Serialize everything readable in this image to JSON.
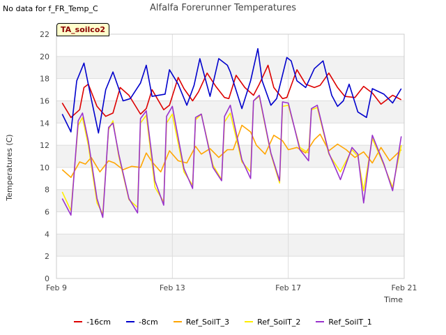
{
  "no_data_note": "No data for f_FR_Temp_C",
  "badge_label": "TA_soilco2",
  "chart_data": {
    "type": "line",
    "title": "Alfalfa Forerunner Temperatures",
    "xlabel": "Time",
    "ylabel": "Temperatures (C)",
    "ylim": [
      0,
      22
    ],
    "yticks": [
      0,
      2,
      4,
      6,
      8,
      10,
      12,
      14,
      16,
      18,
      20,
      22
    ],
    "xlim": [
      0,
      12
    ],
    "xticks": [
      {
        "value": 0,
        "label": "Feb 9"
      },
      {
        "value": 4,
        "label": "Feb 13"
      },
      {
        "value": 8,
        "label": "Feb 17"
      },
      {
        "value": 12,
        "label": "Feb 21"
      }
    ],
    "series": [
      {
        "name": "-16cm",
        "color": "#dd0000",
        "x": [
          0.2,
          0.5,
          0.8,
          0.95,
          1.1,
          1.4,
          1.7,
          1.95,
          2.2,
          2.5,
          2.9,
          3.1,
          3.3,
          3.7,
          3.9,
          4.2,
          4.4,
          4.7,
          4.9,
          5.2,
          5.5,
          5.8,
          5.95,
          6.2,
          6.5,
          6.8,
          7.0,
          7.3,
          7.5,
          7.8,
          7.95,
          8.3,
          8.6,
          8.9,
          9.1,
          9.4,
          9.7,
          9.95,
          10.3,
          10.6,
          10.9,
          11.2,
          11.6,
          11.9
        ],
        "y": [
          15.8,
          14.5,
          15.2,
          17.2,
          17.5,
          15.5,
          14.6,
          14.9,
          17.2,
          16.5,
          14.8,
          15.3,
          17.0,
          15.2,
          15.6,
          18.1,
          17.1,
          16.0,
          16.8,
          18.5,
          17.3,
          16.3,
          16.2,
          18.3,
          17.2,
          16.5,
          17.5,
          19.2,
          17.2,
          16.2,
          16.3,
          18.8,
          17.5,
          17.2,
          17.4,
          18.5,
          17.2,
          16.4,
          16.3,
          17.3,
          16.7,
          15.7,
          16.5,
          16.1
        ]
      },
      {
        "name": "-8cm",
        "color": "#0000cc",
        "x": [
          0.2,
          0.5,
          0.7,
          0.95,
          1.2,
          1.45,
          1.7,
          1.95,
          2.3,
          2.55,
          2.9,
          3.1,
          3.3,
          3.75,
          3.9,
          4.2,
          4.5,
          4.75,
          4.95,
          5.3,
          5.6,
          5.9,
          6.0,
          6.4,
          6.7,
          6.95,
          7.1,
          7.4,
          7.6,
          7.95,
          8.1,
          8.3,
          8.6,
          8.9,
          9.2,
          9.5,
          9.7,
          9.9,
          10.1,
          10.4,
          10.7,
          10.9,
          11.3,
          11.6,
          11.9
        ],
        "y": [
          14.8,
          13.2,
          17.8,
          19.4,
          16.2,
          13.1,
          17.0,
          18.6,
          16.0,
          16.2,
          17.6,
          19.2,
          16.4,
          16.6,
          18.8,
          17.5,
          15.6,
          17.4,
          19.8,
          16.4,
          19.8,
          19.2,
          18.6,
          15.3,
          17.8,
          20.7,
          17.8,
          15.6,
          16.2,
          19.9,
          19.6,
          17.8,
          17.2,
          18.9,
          19.6,
          16.5,
          15.5,
          16.0,
          17.5,
          15.0,
          14.5,
          17.1,
          16.6,
          15.8,
          17.1
        ]
      },
      {
        "name": "Ref_SoilT_3",
        "color": "#ffa500",
        "x": [
          0.2,
          0.5,
          0.8,
          1.0,
          1.2,
          1.5,
          1.8,
          2.0,
          2.3,
          2.6,
          2.9,
          3.1,
          3.3,
          3.6,
          3.9,
          4.2,
          4.5,
          4.8,
          5.0,
          5.3,
          5.6,
          5.9,
          6.1,
          6.4,
          6.7,
          6.9,
          7.2,
          7.5,
          7.8,
          8.0,
          8.3,
          8.6,
          8.9,
          9.1,
          9.4,
          9.7,
          10.0,
          10.3,
          10.6,
          10.9,
          11.2,
          11.5,
          11.9
        ],
        "y": [
          9.8,
          9.1,
          10.5,
          10.3,
          10.9,
          9.6,
          10.6,
          10.4,
          9.8,
          10.1,
          10.0,
          11.3,
          10.5,
          9.6,
          11.5,
          10.6,
          10.4,
          11.9,
          11.2,
          11.7,
          10.9,
          11.6,
          11.6,
          13.8,
          13.2,
          12.0,
          11.2,
          12.9,
          12.4,
          11.6,
          11.8,
          11.3,
          12.5,
          13.0,
          11.5,
          12.1,
          11.6,
          10.9,
          11.4,
          10.4,
          11.8,
          10.6,
          11.6
        ]
      },
      {
        "name": "Ref_SoilT_2",
        "color": "#ffee00",
        "x": [
          0.2,
          0.5,
          0.75,
          0.9,
          1.1,
          1.4,
          1.6,
          1.8,
          1.95,
          2.15,
          2.5,
          2.8,
          2.9,
          3.1,
          3.4,
          3.7,
          3.8,
          4.0,
          4.4,
          4.7,
          4.8,
          5.0,
          5.4,
          5.7,
          5.8,
          6.0,
          6.4,
          6.7,
          6.8,
          7.0,
          7.4,
          7.7,
          7.8,
          8.0,
          8.4,
          8.7,
          8.8,
          9.0,
          9.4,
          9.8,
          10.2,
          10.4,
          10.6,
          10.9,
          11.3,
          11.6,
          11.9
        ],
        "y": [
          7.8,
          6.1,
          13.8,
          14.5,
          12.0,
          6.8,
          5.8,
          13.4,
          14.2,
          11.0,
          7.1,
          6.4,
          14.0,
          14.7,
          8.2,
          6.9,
          14.0,
          14.8,
          9.6,
          8.4,
          14.3,
          14.8,
          10.2,
          8.9,
          14.1,
          14.9,
          10.5,
          9.6,
          16.0,
          16.4,
          11.2,
          8.6,
          15.5,
          15.6,
          11.8,
          11.3,
          15.2,
          15.4,
          11.2,
          9.6,
          11.6,
          11.0,
          7.9,
          12.6,
          10.2,
          8.2,
          12.0
        ]
      },
      {
        "name": "Ref_SoilT_1",
        "color": "#9932cc",
        "x": [
          0.2,
          0.5,
          0.75,
          0.9,
          1.1,
          1.4,
          1.6,
          1.8,
          1.95,
          2.15,
          2.5,
          2.8,
          2.9,
          3.1,
          3.4,
          3.7,
          3.8,
          4.0,
          4.4,
          4.7,
          4.8,
          5.0,
          5.4,
          5.7,
          5.8,
          6.0,
          6.4,
          6.7,
          6.8,
          7.0,
          7.4,
          7.7,
          7.8,
          8.0,
          8.4,
          8.7,
          8.8,
          9.0,
          9.4,
          9.8,
          10.2,
          10.4,
          10.6,
          10.9,
          11.3,
          11.6,
          11.9
        ],
        "y": [
          7.2,
          5.7,
          14.2,
          14.9,
          12.4,
          7.2,
          5.5,
          13.6,
          14.0,
          11.2,
          7.2,
          5.9,
          14.4,
          15.1,
          8.8,
          6.6,
          14.6,
          15.5,
          9.9,
          8.1,
          14.5,
          14.8,
          10.0,
          8.8,
          14.6,
          15.6,
          10.7,
          9.0,
          16.0,
          16.5,
          11.3,
          8.8,
          15.9,
          15.8,
          11.6,
          10.6,
          15.3,
          15.6,
          11.3,
          8.9,
          11.8,
          11.2,
          6.8,
          12.9,
          10.3,
          7.9,
          12.8
        ]
      }
    ]
  }
}
